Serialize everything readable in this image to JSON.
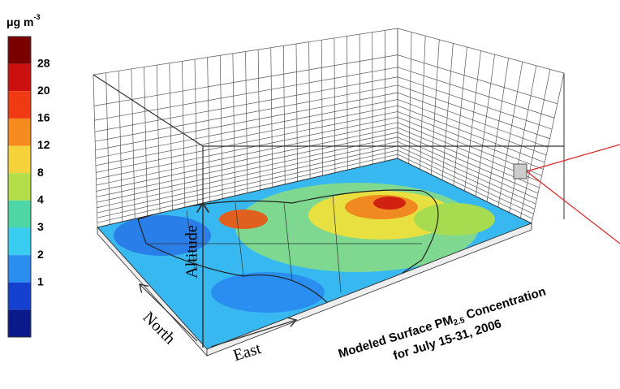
{
  "colorbar": {
    "unit": "μg m",
    "unit_exponent": "-3",
    "colors": [
      "#7a0000",
      "#cc1010",
      "#f03a14",
      "#f58a1e",
      "#f5d23a",
      "#b4de48",
      "#4ed6a6",
      "#38ccf0",
      "#2a8ef0",
      "#1440d0",
      "#0a1a8a"
    ],
    "labels": [
      "28",
      "20",
      "16",
      "12",
      "8",
      "4",
      "3",
      "2",
      "1"
    ]
  },
  "axes": {
    "altitude": "Altitude",
    "north": "North",
    "east": "East"
  },
  "title": {
    "line1_start": "Modeled Surface PM",
    "line1_subscript": "2.5",
    "line1_end": " Concentration",
    "line2": "for July 15-31, 2006"
  }
}
